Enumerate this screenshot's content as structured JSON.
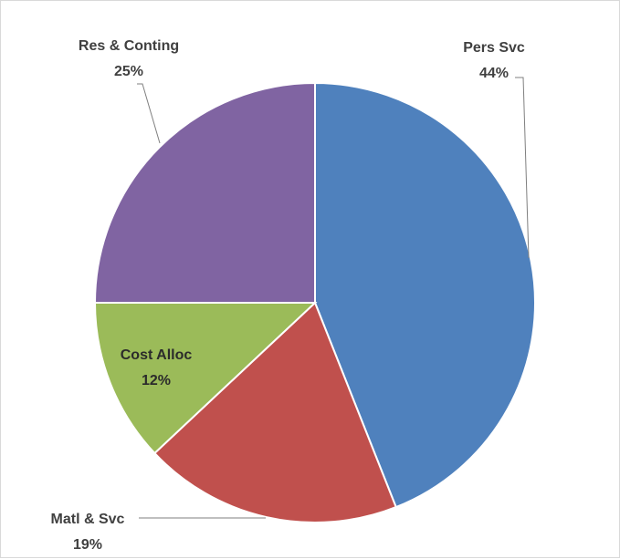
{
  "chart_data": {
    "type": "pie",
    "title": "",
    "slices": [
      {
        "label": "Pers Svc",
        "value": 44,
        "value_text": "44%",
        "color": "#4f81bd"
      },
      {
        "label": "Matl & Svc",
        "value": 19,
        "value_text": "19%",
        "color": "#c0504d"
      },
      {
        "label": "Cost Alloc",
        "value": 12,
        "value_text": "12%",
        "color": "#9bbb59"
      },
      {
        "label": "Res & Conting",
        "value": 25,
        "value_text": "25%",
        "color": "#8064a2"
      }
    ],
    "start_angle": "12 o'clock",
    "direction": "clockwise",
    "legend": "none",
    "data_labels": "category name and percentage"
  }
}
